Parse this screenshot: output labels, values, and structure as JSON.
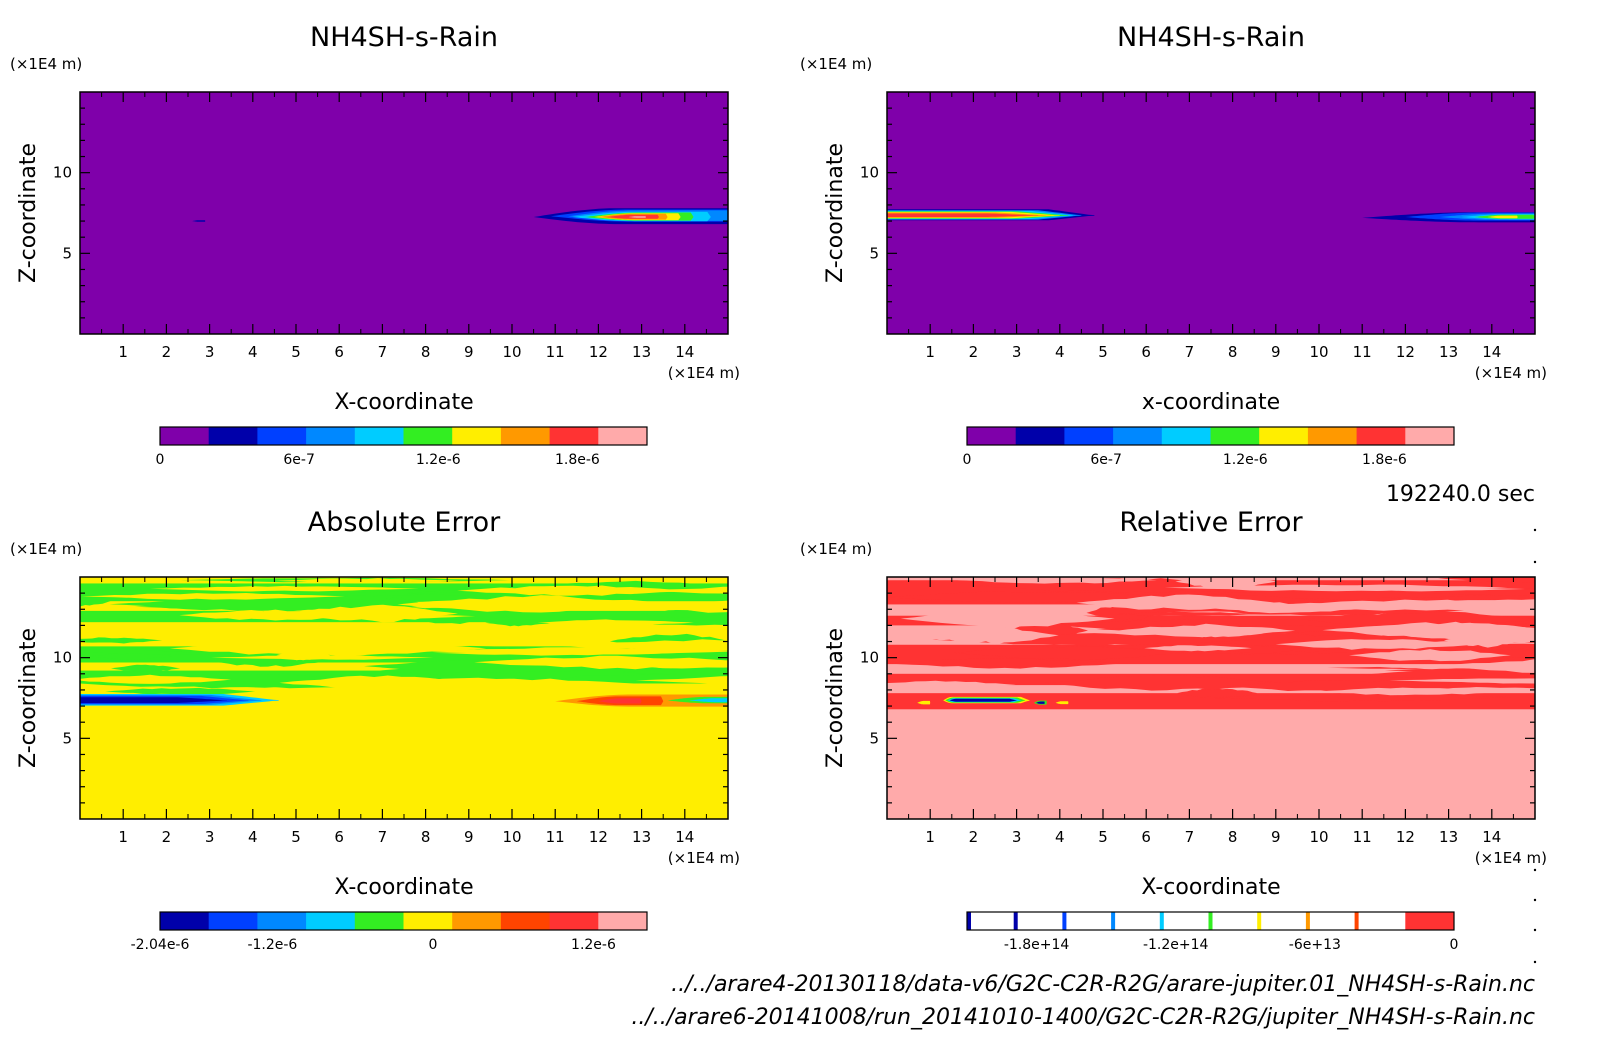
{
  "timestamp": "192240.0 sec",
  "footer": {
    "line1": "../../arare4-20130118/data-v6/G2C-C2R-R2G/arare-jupiter.01_NH4SH-s-Rain.nc",
    "line2": "../../arare6-20141008/run_20141010-1400/G2C-C2R-R2G/jupiter_NH4SH-s-Rain.nc"
  },
  "colors": {
    "purple": "#7f00aa",
    "navy": "#0000aa",
    "blue": "#0040ff",
    "midblue": "#0088ff",
    "cyan": "#00ccff",
    "green": "#33ee22",
    "yellow": "#ffee00",
    "orange": "#ff9900",
    "redorange": "#ff4400",
    "red": "#ff3333",
    "pink": "#ffaaaa",
    "white": "#ffffff"
  },
  "chart_data": [
    {
      "type": "heatmap",
      "title": "NH4SH-s-Rain",
      "xlabel": "X-coordinate",
      "ylabel": "Z-coordinate",
      "x_unit": "(×1E4 m)",
      "y_unit": "(×1E4 m)",
      "xlim": [
        0,
        15
      ],
      "ylim": [
        0,
        15
      ],
      "xticks": [
        1,
        2,
        3,
        4,
        5,
        6,
        7,
        8,
        9,
        10,
        11,
        12,
        13,
        14
      ],
      "yticks": [
        5,
        10
      ],
      "colorbar": {
        "range": [
          0,
          2.1e-06
        ],
        "levels": [
          "purple",
          "navy",
          "blue",
          "midblue",
          "cyan",
          "green",
          "yellow",
          "orange",
          "red",
          "pink"
        ],
        "tick_labels": [
          "0",
          "6e-7",
          "1.2e-6",
          "1.8e-6"
        ],
        "tick_values": [
          0,
          6e-07,
          1.2e-06,
          1.8e-06
        ]
      },
      "background": "purple",
      "features": [
        {
          "description": "rain layer",
          "x": [
            10.5,
            15
          ],
          "z": [
            6.8,
            7.8
          ],
          "peak_x": 12.9,
          "peak_z": 7.2
        }
      ]
    },
    {
      "type": "heatmap",
      "title": "NH4SH-s-Rain",
      "xlabel": "x-coordinate",
      "ylabel": "Z-coordinate",
      "x_unit": "(×1E4 m)",
      "y_unit": "(×1E4 m)",
      "xlim": [
        0,
        15
      ],
      "ylim": [
        0,
        15
      ],
      "xticks": [
        1,
        2,
        3,
        4,
        5,
        6,
        7,
        8,
        9,
        10,
        11,
        12,
        13,
        14
      ],
      "yticks": [
        5,
        10
      ],
      "colorbar": {
        "range": [
          0,
          2.1e-06
        ],
        "levels": [
          "purple",
          "navy",
          "blue",
          "midblue",
          "cyan",
          "green",
          "yellow",
          "orange",
          "red",
          "pink"
        ],
        "tick_labels": [
          "0",
          "6e-7",
          "1.2e-6",
          "1.8e-6"
        ],
        "tick_values": [
          0,
          6e-07,
          1.2e-06,
          1.8e-06
        ]
      },
      "background": "purple",
      "features": [
        {
          "description": "rain layer",
          "x": [
            0,
            4.7
          ],
          "z": [
            7.0,
            7.6
          ],
          "peak_x": 2.5,
          "peak_z": 7.3
        },
        {
          "description": "rain layer",
          "x": [
            11,
            15
          ],
          "z": [
            6.9,
            7.6
          ],
          "peak_x": 14,
          "peak_z": 7.2
        }
      ]
    },
    {
      "type": "heatmap",
      "title": "Absolute Error",
      "xlabel": "X-coordinate",
      "ylabel": "Z-coordinate",
      "x_unit": "(×1E4 m)",
      "y_unit": "(×1E4 m)",
      "xlim": [
        0,
        15
      ],
      "ylim": [
        0,
        15
      ],
      "xticks": [
        1,
        2,
        3,
        4,
        5,
        6,
        7,
        8,
        9,
        10,
        11,
        12,
        13,
        14
      ],
      "yticks": [
        5,
        10
      ],
      "colorbar": {
        "range": [
          -2.04e-06,
          1.6e-06
        ],
        "levels": [
          "navy",
          "blue",
          "midblue",
          "cyan",
          "green",
          "yellow",
          "orange",
          "redorange",
          "red",
          "pink"
        ],
        "tick_labels": [
          "-2.04e-6",
          "-1.2e-6",
          "0",
          "1.2e-6"
        ],
        "tick_values": [
          -2.04e-06,
          -1.2e-06,
          0,
          1.2e-06
        ]
      },
      "background": "yellow",
      "features": [
        {
          "description": "negative error band",
          "x": [
            0,
            4.5
          ],
          "z": [
            7.0,
            7.7
          ]
        },
        {
          "description": "positive error band",
          "x": [
            11,
            15
          ],
          "z": [
            6.9,
            7.7
          ]
        },
        {
          "description": "banded green/yellow noise",
          "x": [
            0,
            15
          ],
          "z": [
            7.8,
            15
          ]
        }
      ]
    },
    {
      "type": "heatmap",
      "title": "Relative Error",
      "xlabel": "X-coordinate",
      "ylabel": "Z-coordinate",
      "x_unit": "(×1E4 m)",
      "y_unit": "(×1E4 m)",
      "xlim": [
        0,
        15
      ],
      "ylim": [
        0,
        15
      ],
      "xticks": [
        1,
        2,
        3,
        4,
        5,
        6,
        7,
        8,
        9,
        10,
        11,
        12,
        13,
        14
      ],
      "yticks": [
        5,
        10
      ],
      "colorbar": {
        "range": [
          -210000000000000.0,
          0
        ],
        "levels": [
          "white",
          "white",
          "white",
          "white",
          "white",
          "white",
          "white",
          "white",
          "white",
          "red"
        ],
        "tick_labels": [
          "-1.8e+14",
          "-1.2e+14",
          "-6e+13",
          "0"
        ],
        "tick_values": [
          -180000000000000.0,
          -120000000000000.0,
          -60000000000000.0,
          0
        ]
      },
      "background": "pink",
      "features": [
        {
          "description": "banded red/pink noise",
          "x": [
            0,
            15
          ],
          "z": [
            6.5,
            15
          ]
        },
        {
          "description": "large negative spike",
          "x": [
            1.3,
            3.2
          ],
          "z": [
            7.1,
            7.5
          ]
        }
      ]
    }
  ]
}
